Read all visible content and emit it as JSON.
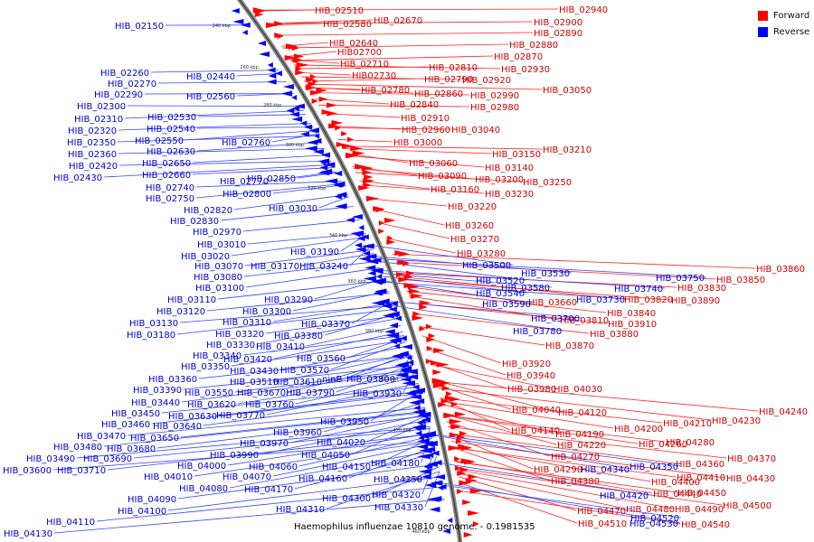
{
  "legend": {
    "forward_label": "Forward",
    "reverse_label": "Reverse",
    "forward_color": "#ff0000",
    "reverse_color": "#0000ff"
  },
  "caption": "Haemophilus influenzae 10810 genome. - 0.1981535",
  "ring_ticks": [
    "240 kbp",
    "260 kbp",
    "280 kbp",
    "300 kbp",
    "320 kbp",
    "340 kbp",
    "360 kbp",
    "380 kbp",
    "400 kbp",
    "420 kbp",
    "440 kbp",
    "460 kbp"
  ],
  "forward_genes": [
    "HIB_02510",
    "HIB_02580",
    "HIB_02670",
    "HIB_02640",
    "HIB02700",
    "HIB_02710",
    "HIB02730",
    "HIB_02780",
    "HIB_02810",
    "HIB_02790",
    "HIB_02860",
    "HIB_02840",
    "HIB_02910",
    "HIB_02960",
    "HIB_03000",
    "HIB_02940",
    "HIB_02900",
    "HIB_02890",
    "HIB_02880",
    "HIB_02870",
    "HIB_02930",
    "HIB_02920",
    "HIB_02990",
    "HIB_02980",
    "HIB_03040",
    "HIB_03050",
    "HIB_03060",
    "HIB_03090",
    "HIB_03160",
    "HIB_03220",
    "HIB_03260",
    "HIB_03270",
    "HIB_03280",
    "HIB_03150",
    "HIB_03210",
    "HIB_03140",
    "HIB_03200",
    "HIB_03250",
    "HIB_03230",
    "HIB_03660",
    "HIB_03820",
    "HIB_03890",
    "HIB_03850",
    "HIB_03860",
    "HIB_03830",
    "HIB_03810",
    "HIB_03840",
    "HIB_03910",
    "HIB_03880",
    "HIB_03870",
    "HIB_03920",
    "HIB_03940",
    "HIB_03980",
    "HIB_04030",
    "HIB_04040",
    "HIB_04120",
    "HIB_04140",
    "HIB_04190",
    "HIB_04200",
    "HIB_04210",
    "HIB_04230",
    "HIB_04240",
    "HIB_04220",
    "HIB_04260",
    "HIB_04280",
    "HIB_04270",
    "HIB_04290",
    "HIB_04370",
    "HIB_04360",
    "HIB_04410",
    "HIB_04430",
    "HIB_04400",
    "HIB_04380",
    "HIB_04440",
    "HIB_04450",
    "HIB_04490",
    "HIB_04500",
    "HIB_04480",
    "HIB_04470",
    "HIB_04540",
    "HIB_04510"
  ],
  "reverse_genes": [
    "HIB_02150",
    "HIB_02260",
    "HIB_02270",
    "HIB_02290",
    "HIB_02300",
    "HIB_02310",
    "HIB_02320",
    "HIB_02350",
    "HIB_02360",
    "HIB_02420",
    "HIB_02430",
    "HIB_02440",
    "HIB_02560",
    "HIB_02530",
    "HIB_02540",
    "HIB_02550",
    "HIB_02630",
    "HIB_02650",
    "HIB_02660",
    "HIB_02740",
    "HIB_02750",
    "HIB_02760",
    "HIB_02770",
    "HIB_02800",
    "HIB_02850",
    "HIB_02820",
    "HIB_02830",
    "HIB_03030",
    "HIB_02970",
    "HIB_03010",
    "HIB_03020",
    "HIB_03190",
    "HIB_03070",
    "HIB_03080",
    "HIB_03170",
    "HIB_03240",
    "HIB_03100",
    "HIB_03110",
    "HIB_03120",
    "HIB_03130",
    "HIB_03180",
    "HIB_03290",
    "HIB_03300",
    "HIB_03310",
    "HIB_03320",
    "HIB_03330",
    "HIB_03370",
    "HIB_03380",
    "HIB_03410",
    "HIB_03340",
    "HIB_03420",
    "HIB_03350",
    "HIB_03430",
    "HIB_03360",
    "HIB_03560",
    "HIB_03570",
    "HIB_03510",
    "HIB_03610",
    "HIB_03390",
    "HIB_03550",
    "HIB_03670",
    "HIB_03790",
    "ninB",
    "HIB_03800",
    "HIB_03930",
    "HIB_03440",
    "HIB_03620",
    "HIB_03760",
    "HIB_03450",
    "HIB_03630",
    "HIB_03770",
    "HIB_03460",
    "HIB_03640",
    "HIB_03470",
    "HIB_03650",
    "HIB_03480",
    "HIB_03680",
    "HIB_03490",
    "HIB_03690",
    "HIB_03600",
    "HIB_03710",
    "HIB_03950",
    "HIB_03960",
    "HIB_03970",
    "HIB_04020",
    "HIB_03990",
    "HIB_04050",
    "HIB_04000",
    "HIB_04060",
    "HIB_04150",
    "HIB_04180",
    "HIB_04010",
    "HIB_04070",
    "HIB_04160",
    "HIB_04250",
    "HIB_04080",
    "HIB_04170",
    "HIB_04090",
    "HIB_04100",
    "HIB_04300",
    "HIB_04320",
    "HIB_04310",
    "HIB_04330",
    "HIB_04110",
    "HIB_04130",
    "HIB_03500",
    "HIB_03520",
    "HIB_03530",
    "HIB_03540",
    "HIB_03580",
    "HIB_03590",
    "HIB_03750",
    "HIB_03740",
    "HIB_03730",
    "HIB_03700",
    "HIB_03780",
    "HIB_04340",
    "HIB_04350",
    "HIB_04420",
    "HIB_04520",
    "HIB_04530"
  ]
}
